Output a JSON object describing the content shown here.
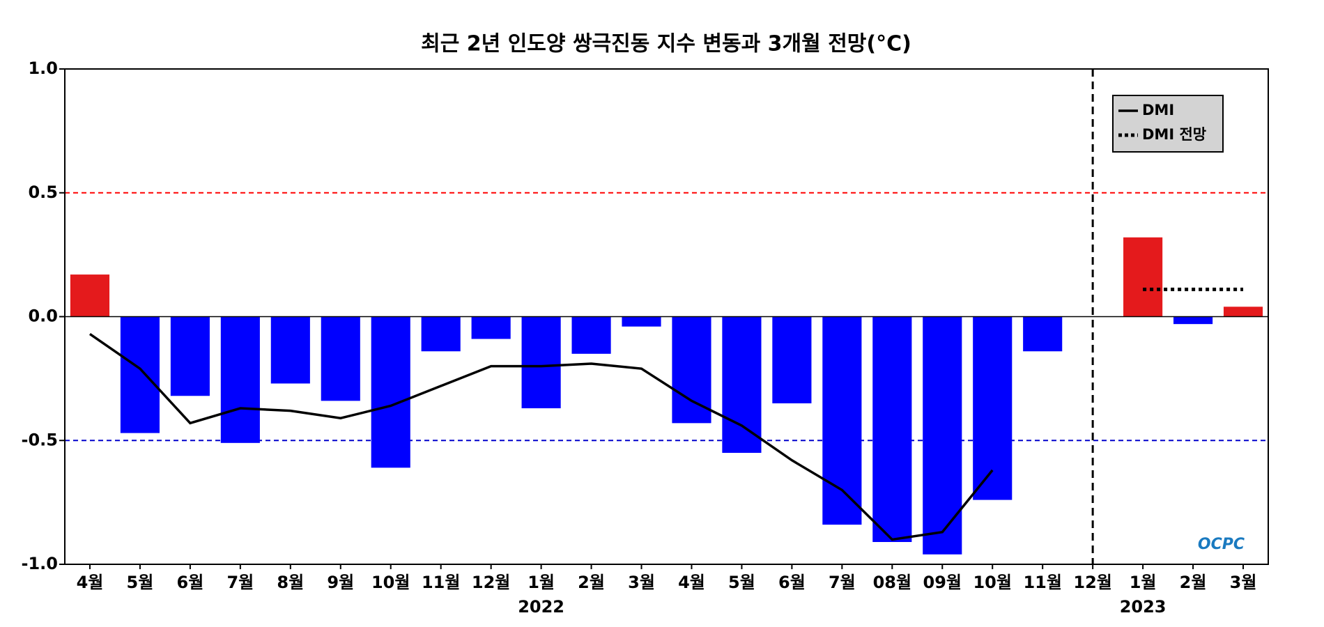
{
  "chart_data": {
    "type": "bar-line",
    "title": "최근 2년 인도양 쌍극진동 지수 변동과 3개월 전망(°C)",
    "categories": [
      "4월",
      "5월",
      "6월",
      "7월",
      "8월",
      "9월",
      "10월",
      "11월",
      "12월",
      "1월",
      "2월",
      "3월",
      "4월",
      "5월",
      "6월",
      "7월",
      "08월",
      "09월",
      "10월",
      "11월",
      "12월",
      "1월",
      "2월",
      "3월"
    ],
    "years": [
      null,
      null,
      null,
      null,
      null,
      null,
      null,
      null,
      null,
      "2022",
      null,
      null,
      null,
      null,
      null,
      null,
      null,
      null,
      null,
      null,
      null,
      "2023",
      null,
      null
    ],
    "bars": {
      "values": [
        0.17,
        -0.47,
        -0.32,
        -0.51,
        -0.27,
        -0.34,
        -0.61,
        -0.14,
        -0.09,
        -0.37,
        -0.15,
        -0.04,
        -0.43,
        -0.55,
        -0.35,
        -0.84,
        -0.91,
        -0.96,
        -0.74,
        -0.14,
        null,
        0.32,
        -0.03,
        0.04
      ],
      "positive_color": "#e41a1c",
      "negative_color": "#0000ff"
    },
    "series": [
      {
        "name": "DMI",
        "color": "#000000",
        "style": "solid",
        "values": [
          -0.07,
          -0.21,
          -0.43,
          -0.37,
          -0.38,
          -0.41,
          -0.36,
          -0.28,
          -0.2,
          -0.2,
          -0.19,
          -0.21,
          -0.34,
          -0.44,
          -0.58,
          -0.7,
          -0.9,
          -0.87,
          -0.62,
          null,
          null,
          null,
          null,
          null
        ]
      },
      {
        "name": "DMI 전망",
        "color": "#000000",
        "style": "dotted",
        "values": [
          null,
          null,
          null,
          null,
          null,
          null,
          null,
          null,
          null,
          null,
          null,
          null,
          null,
          null,
          null,
          null,
          null,
          null,
          null,
          null,
          null,
          0.11,
          0.11,
          0.11
        ]
      }
    ],
    "thresholds": [
      {
        "value": 0.5,
        "color": "#ff0000"
      },
      {
        "value": -0.5,
        "color": "#0000cc"
      }
    ],
    "ylim": [
      -1.0,
      1.0
    ],
    "yticks": [
      {
        "value": -1.0,
        "label": "-1.0"
      },
      {
        "value": -0.5,
        "label": "-0.5"
      },
      {
        "value": 0,
        "label": "0.0"
      },
      {
        "value": 0.5,
        "label": "0.5"
      },
      {
        "value": 1.0,
        "label": "1.0"
      }
    ],
    "legend": "upper right",
    "logo": "OCPC"
  }
}
